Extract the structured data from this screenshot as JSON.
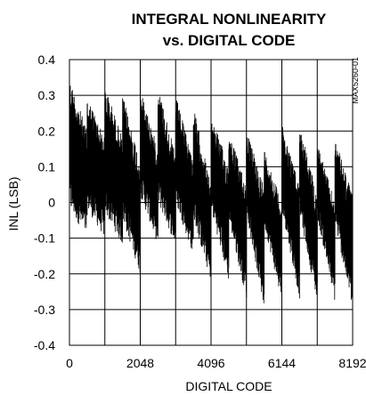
{
  "chart_data": {
    "type": "line",
    "title_lines": [
      "INTEGRAL NONLINEARITY",
      "vs. DIGITAL CODE"
    ],
    "xlabel": "DIGITAL CODE",
    "ylabel": "INL (LSB)",
    "side_note": "MAX5260-01",
    "xlim": [
      0,
      8192
    ],
    "ylim": [
      -0.4,
      0.4
    ],
    "x_ticks": [
      0,
      2048,
      4096,
      6144,
      8192
    ],
    "x_tick_labels": [
      "0",
      "2048",
      "4096",
      "6144",
      "8192"
    ],
    "y_ticks": [
      0.4,
      0.3,
      0.2,
      0.1,
      0,
      -0.1,
      -0.2,
      -0.3,
      -0.4
    ],
    "y_tick_labels": [
      "0.4",
      "0.3",
      "0.2",
      "0.1",
      "0",
      "-0.1",
      "-0.2",
      "-0.3",
      "-0.4"
    ],
    "grid": true,
    "series": [
      {
        "color": "#000000",
        "segments": [
          {
            "x": [
              0,
              512
            ],
            "min": [
              -0.02,
              -0.1
            ],
            "max": [
              0.35,
              0.2
            ]
          },
          {
            "x": [
              512,
              1024
            ],
            "min": [
              -0.02,
              -0.1
            ],
            "max": [
              0.3,
              0.18
            ]
          },
          {
            "x": [
              1024,
              1536
            ],
            "min": [
              -0.03,
              -0.12
            ],
            "max": [
              0.33,
              0.18
            ]
          },
          {
            "x": [
              1536,
              2048
            ],
            "min": [
              -0.05,
              -0.2
            ],
            "max": [
              0.3,
              0.12
            ]
          },
          {
            "x": [
              2048,
              2560
            ],
            "min": [
              0.02,
              -0.12
            ],
            "max": [
              0.32,
              0.15
            ]
          },
          {
            "x": [
              2560,
              3072
            ],
            "min": [
              0.0,
              -0.12
            ],
            "max": [
              0.33,
              0.13
            ]
          },
          {
            "x": [
              3072,
              3584
            ],
            "min": [
              0.0,
              -0.15
            ],
            "max": [
              0.3,
              0.12
            ]
          },
          {
            "x": [
              3584,
              4096
            ],
            "min": [
              -0.05,
              -0.22
            ],
            "max": [
              0.27,
              0.05
            ]
          },
          {
            "x": [
              4096,
              4608
            ],
            "min": [
              -0.02,
              -0.22
            ],
            "max": [
              0.25,
              0.1
            ]
          },
          {
            "x": [
              4608,
              5120
            ],
            "min": [
              -0.05,
              -0.27
            ],
            "max": [
              0.2,
              0.05
            ]
          },
          {
            "x": [
              5120,
              5632
            ],
            "min": [
              -0.03,
              -0.3
            ],
            "max": [
              0.2,
              0.05
            ]
          },
          {
            "x": [
              5632,
              6144
            ],
            "min": [
              -0.06,
              -0.28
            ],
            "max": [
              0.15,
              0.0
            ]
          },
          {
            "x": [
              6144,
              6656
            ],
            "min": [
              -0.02,
              -0.27
            ],
            "max": [
              0.22,
              0.05
            ]
          },
          {
            "x": [
              6656,
              7168
            ],
            "min": [
              -0.03,
              -0.28
            ],
            "max": [
              0.22,
              0.02
            ]
          },
          {
            "x": [
              7168,
              7680
            ],
            "min": [
              -0.04,
              -0.28
            ],
            "max": [
              0.17,
              0.0
            ]
          },
          {
            "x": [
              7680,
              8192
            ],
            "min": [
              -0.06,
              -0.3
            ],
            "max": [
              0.18,
              0.02
            ]
          }
        ]
      }
    ]
  }
}
